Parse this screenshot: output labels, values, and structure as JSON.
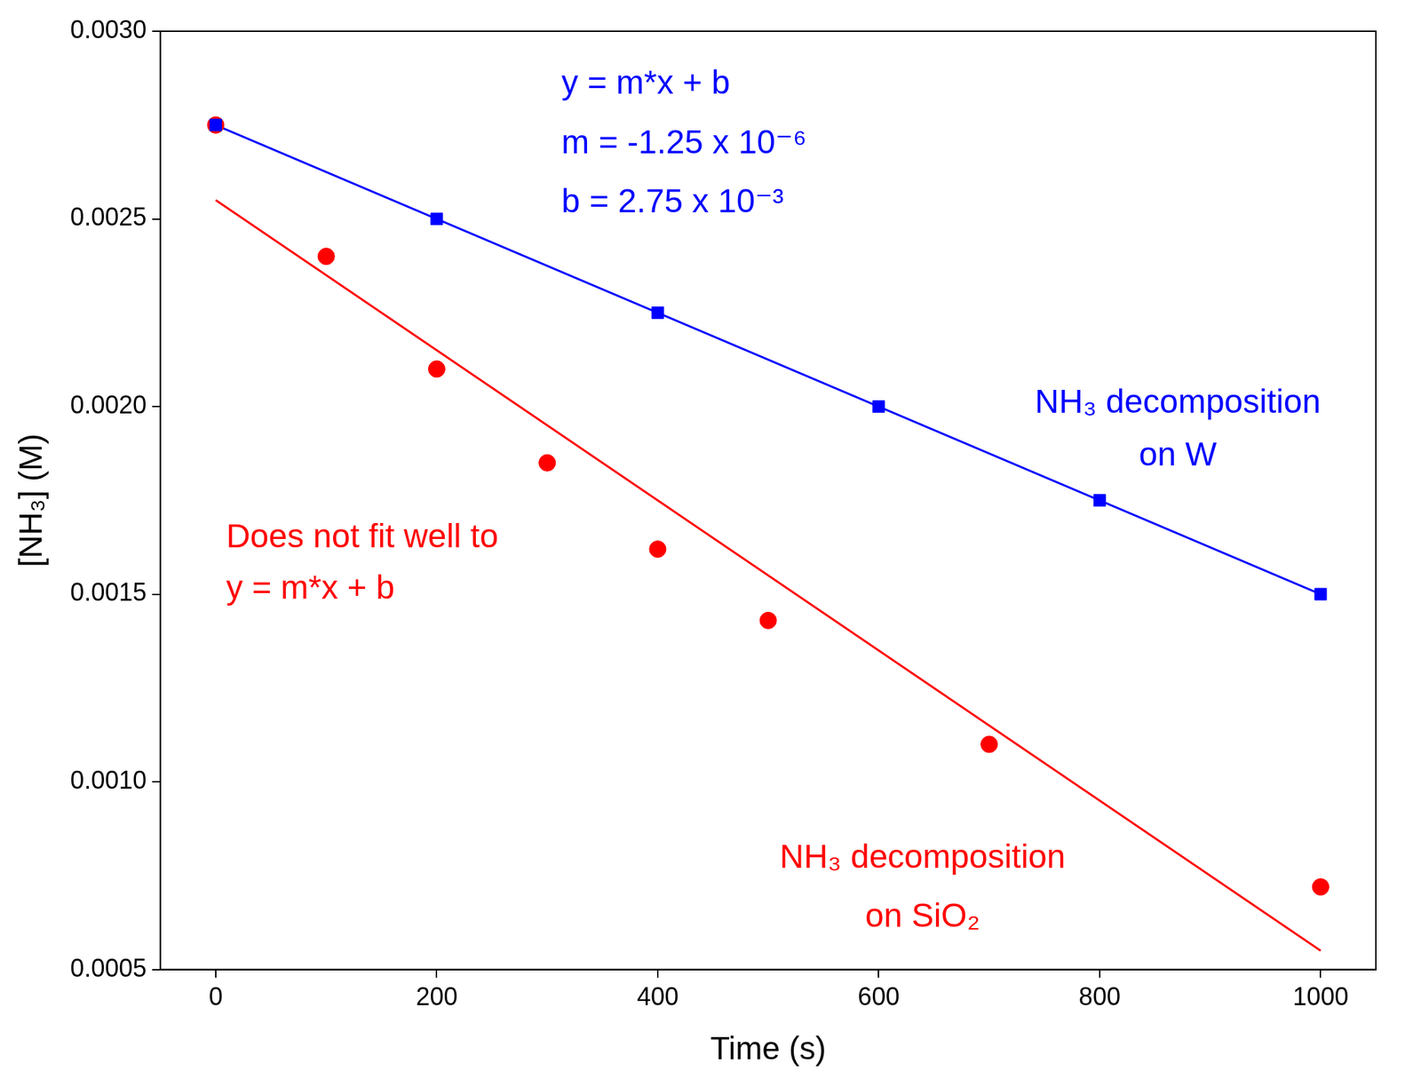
{
  "chart_data": {
    "type": "scatter",
    "x_label": "Time (s)",
    "y_label": "[NH₃] (M)",
    "xlim": [
      -50,
      1050
    ],
    "xticks": [
      0,
      200,
      400,
      600,
      800,
      1000
    ],
    "ylim": [
      0.0005,
      0.003
    ],
    "yticks": [
      0.0005,
      {
        "value": 0.001,
        "label": "0.0010"
      },
      0.0015,
      {
        "value": 0.002,
        "label": "0.0020"
      },
      0.0025,
      {
        "value": 0.003,
        "label": "0.0030"
      }
    ],
    "grid": false,
    "series": [
      {
        "type": "line",
        "color": "#0000ff",
        "line_style": "solid",
        "x": [
          0,
          1000
        ],
        "values": [
          0.00275,
          0.0015
        ]
      },
      {
        "type": "line",
        "color": "#ff0000",
        "line_style": "solid",
        "x": [
          0,
          1000
        ],
        "values": [
          0.00255,
          0.00055
        ]
      },
      {
        "type": "scatter",
        "name": "NH₃ decomposition on W",
        "color": "#0000ff",
        "marker": "square",
        "x": [
          0,
          200,
          400,
          600,
          800,
          1000
        ],
        "values": [
          0.00275,
          0.0025,
          0.00225,
          0.002,
          0.00175,
          0.0015
        ]
      },
      {
        "type": "scatter",
        "name": "NH₃ decomposition on SiO₂",
        "color": "#ff0000",
        "marker": "circle",
        "x": [
          0,
          100,
          200,
          300,
          400,
          500,
          700,
          1000
        ],
        "values": [
          0.00275,
          0.0024,
          0.0021,
          0.00185,
          0.00162,
          0.00143,
          0.0011,
          0.00072
        ]
      }
    ],
    "annotations": [
      {
        "text": [
          "y = m*x + b",
          "m = -1.25 x 10⁻⁶",
          "b = 2.75 x 10⁻³"
        ],
        "color": "#0000ff"
      },
      {
        "text": [
          "Does not fit well to",
          "y = m*x + b"
        ],
        "color": "#ff0000"
      }
    ]
  }
}
